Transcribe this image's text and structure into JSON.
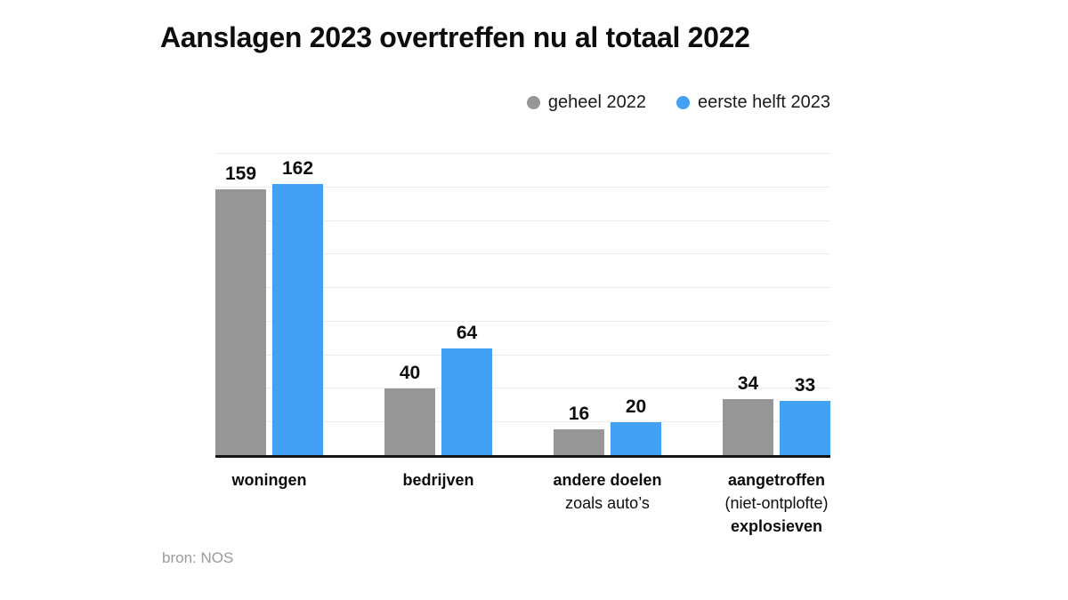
{
  "header": {
    "title": "Aanslagen 2023 overtreffen nu al totaal 2022"
  },
  "legend": {
    "items": [
      {
        "label": "geheel 2022",
        "color": "#969696"
      },
      {
        "label": "eerste helft 2023",
        "color": "#42a0f5"
      }
    ]
  },
  "footer": {
    "source": "bron: NOS"
  },
  "chart_data": {
    "type": "bar",
    "title": "Aanslagen 2023 overtreffen nu al totaal 2022",
    "categories": [
      "woningen",
      "bedrijven",
      "andere doelen zoals auto’s",
      "aangetroffen (niet-ontplofte) explosieven"
    ],
    "category_lines": [
      [
        {
          "text": "woningen",
          "bold": true
        }
      ],
      [
        {
          "text": "bedrijven",
          "bold": true
        }
      ],
      [
        {
          "text": "andere doelen",
          "bold": true
        },
        {
          "text": "zoals auto’s",
          "bold": false
        }
      ],
      [
        {
          "text": "aangetroffen",
          "bold": true
        },
        {
          "text": "(niet-ontplofte)",
          "bold": false
        },
        {
          "text": "explosieven",
          "bold": true
        }
      ]
    ],
    "series": [
      {
        "name": "geheel 2022",
        "color": "#969696",
        "values": [
          159,
          40,
          16,
          34
        ]
      },
      {
        "name": "eerste helft 2023",
        "color": "#42a0f5",
        "values": [
          162,
          64,
          20,
          33
        ]
      }
    ],
    "xlabel": "",
    "ylabel": "",
    "ylim": [
      0,
      180
    ],
    "grid_step": 20,
    "grid": true,
    "value_labels": true,
    "legend_position": "top-right",
    "axis_color": "#141414",
    "gridline_color": "#ececec"
  }
}
